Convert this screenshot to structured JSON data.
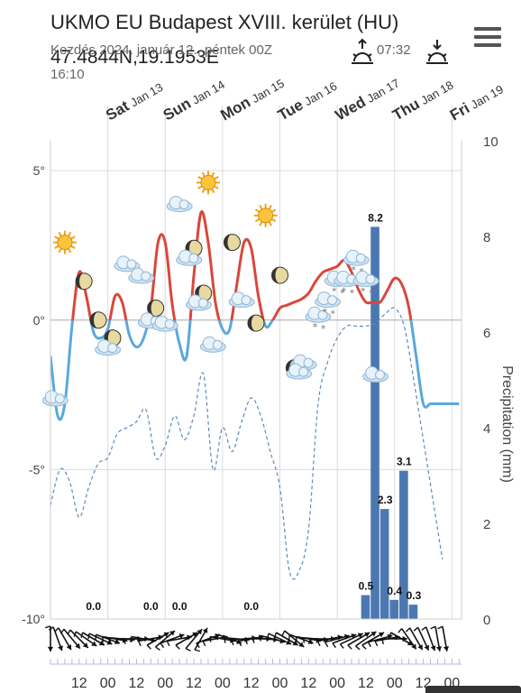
{
  "header": {
    "title": "UKMO EU Budapest XVIII. kerület (HU)",
    "coords": "47.4844N,19.1953E",
    "issued_line": "Kezdés 2024. január 12., péntek 00Z",
    "issued_time": "16:10",
    "sunrise": "07:32"
  },
  "icons": {
    "menu": "hamburger-menu-icon",
    "sunrise": "sunrise-icon",
    "sunset": "sunset-icon"
  },
  "colors": {
    "temp_warm": "#d9473b",
    "temp_cold": "#5aa8dc",
    "precip_bar": "#4b78b0",
    "dewpoint": "#5b8bbd",
    "grid": "#dcdcdc",
    "zero_line": "#aaaaaa",
    "axis_text": "#444444"
  },
  "chart_data": {
    "type": "line",
    "day_labels": [
      {
        "day": "Sat",
        "date": "Jan 13"
      },
      {
        "day": "Sun",
        "date": "Jan 14"
      },
      {
        "day": "Mon",
        "date": "Jan 15"
      },
      {
        "day": "Tue",
        "date": "Jan 16"
      },
      {
        "day": "Wed",
        "date": "Jan 17"
      },
      {
        "day": "Thu",
        "date": "Jan 18"
      },
      {
        "day": "Fri",
        "date": "Jan 19"
      }
    ],
    "x_tick_labels": [
      "12",
      "00",
      "12",
      "00",
      "12",
      "00",
      "12",
      "00",
      "12",
      "00",
      "12",
      "00",
      "12",
      "00"
    ],
    "x_hours": [
      12,
      24,
      36,
      48,
      60,
      72,
      84,
      96,
      108,
      120,
      132,
      144,
      156,
      168
    ],
    "y_left": {
      "ticks": [
        "5°",
        "0°",
        "-5°",
        "-10°"
      ],
      "values": [
        5,
        0,
        -5,
        -10
      ],
      "range": [
        -10,
        6
      ]
    },
    "y_right": {
      "label": "Precipitation (mm)",
      "ticks": [
        "0",
        "2",
        "4",
        "6",
        "8",
        "10"
      ],
      "values": [
        0,
        2,
        4,
        6,
        8,
        10
      ],
      "range": [
        0,
        10
      ]
    },
    "x_range": [
      0,
      172
    ],
    "temperature": {
      "x": [
        0,
        3,
        6,
        9,
        12,
        15,
        18,
        21,
        24,
        27,
        30,
        33,
        36,
        39,
        42,
        45,
        48,
        51,
        54,
        57,
        60,
        63,
        66,
        69,
        72,
        75,
        78,
        81,
        84,
        87,
        90,
        93,
        96,
        99,
        102,
        105,
        108,
        111,
        114,
        117,
        120,
        123,
        126,
        129,
        132,
        135,
        138,
        141,
        144,
        147,
        150,
        153,
        156,
        159,
        162,
        165,
        168,
        171
      ],
      "y": [
        -1.2,
        -3.2,
        -2.8,
        -0.2,
        1.6,
        0.8,
        -0.4,
        -0.6,
        -0.3,
        0.8,
        0.6,
        -0.5,
        -0.9,
        -0.6,
        0.4,
        2.6,
        2.6,
        0.5,
        -0.8,
        -1.2,
        1.5,
        3.6,
        2.6,
        0.6,
        -0.3,
        -0.3,
        1.2,
        2.6,
        2.4,
        0.8,
        -0.2,
        0.0,
        0.4,
        0.5,
        0.6,
        0.7,
        0.9,
        1.3,
        1.6,
        1.7,
        1.8,
        2.0,
        1.6,
        1.0,
        0.6,
        0.6,
        0.6,
        1.0,
        1.4,
        1.2,
        0.4,
        -1.2,
        -2.8,
        -2.8,
        -2.8,
        -2.8,
        -2.8,
        -2.8
      ],
      "note": ""
    },
    "dewpoint": {
      "x": [
        0,
        4,
        8,
        12,
        16,
        20,
        24,
        28,
        32,
        36,
        40,
        44,
        48,
        52,
        56,
        60,
        64,
        68,
        72,
        76,
        80,
        84,
        88,
        92,
        96,
        100,
        104,
        108,
        112,
        116,
        120,
        124,
        128,
        132,
        136,
        140,
        144,
        148,
        152,
        156,
        160,
        164
      ],
      "y": [
        -6.2,
        -5.0,
        -5.4,
        -6.6,
        -5.6,
        -4.8,
        -4.6,
        -3.8,
        -3.6,
        -3.4,
        -3.0,
        -4.6,
        -4.2,
        -3.2,
        -4.0,
        -3.2,
        -1.8,
        -5.0,
        -3.6,
        -4.4,
        -3.4,
        -2.6,
        -3.2,
        -4.4,
        -5.6,
        -8.4,
        -8.4,
        -7.0,
        -2.8,
        -1.4,
        -0.6,
        -0.2,
        -0.2,
        -0.2,
        -0.1,
        0.2,
        0.4,
        -0.2,
        -2.0,
        -4.0,
        -6.0,
        -8.0
      ]
    },
    "precipitation": {
      "bars": [
        {
          "x_start": 130,
          "x_end": 134,
          "value": 0.5,
          "label": "0.5"
        },
        {
          "x_start": 134,
          "x_end": 138,
          "value": 8.2,
          "label": "8.2"
        },
        {
          "x_start": 138,
          "x_end": 142,
          "value": 2.3,
          "label": "2.3"
        },
        {
          "x_start": 142,
          "x_end": 146,
          "value": 0.4,
          "label": "0.4"
        },
        {
          "x_start": 146,
          "x_end": 150,
          "value": 3.1,
          "label": "3.1"
        },
        {
          "x_start": 150,
          "x_end": 154,
          "value": 0.3,
          "label": "0.3"
        }
      ],
      "zero_labels": [
        {
          "x": 18,
          "label": "0.0"
        },
        {
          "x": 42,
          "label": "0.0"
        },
        {
          "x": 54,
          "label": "0.0"
        },
        {
          "x": 84,
          "label": "0.0"
        }
      ]
    },
    "weather_icons": [
      {
        "x": 6,
        "y": 2.6,
        "type": "sun"
      },
      {
        "x": 14,
        "y": 1.3,
        "type": "moon"
      },
      {
        "x": 2,
        "y": -2.6,
        "type": "cloud"
      },
      {
        "x": 20,
        "y": 0.0,
        "type": "moon"
      },
      {
        "x": 26,
        "y": -0.6,
        "type": "moon"
      },
      {
        "x": 24,
        "y": -0.9,
        "type": "cloud"
      },
      {
        "x": 32,
        "y": 1.9,
        "type": "cloud"
      },
      {
        "x": 38,
        "y": 1.5,
        "type": "cloud"
      },
      {
        "x": 44,
        "y": 0.4,
        "type": "moon"
      },
      {
        "x": 42,
        "y": 0.0,
        "type": "cloud"
      },
      {
        "x": 48,
        "y": -0.1,
        "type": "cloud"
      },
      {
        "x": 54,
        "y": 3.9,
        "type": "cloud"
      },
      {
        "x": 60,
        "y": 2.4,
        "type": "moon"
      },
      {
        "x": 58,
        "y": 2.1,
        "type": "cloud"
      },
      {
        "x": 66,
        "y": 4.6,
        "type": "sun"
      },
      {
        "x": 64,
        "y": 0.9,
        "type": "moon"
      },
      {
        "x": 62,
        "y": 0.6,
        "type": "cloud"
      },
      {
        "x": 68,
        "y": -0.8,
        "type": "cloud"
      },
      {
        "x": 76,
        "y": 2.6,
        "type": "moon"
      },
      {
        "x": 80,
        "y": 0.7,
        "type": "cloud"
      },
      {
        "x": 86,
        "y": -0.1,
        "type": "moon"
      },
      {
        "x": 90,
        "y": 3.5,
        "type": "sun"
      },
      {
        "x": 96,
        "y": 1.5,
        "type": "moon"
      },
      {
        "x": 102,
        "y": -1.6,
        "type": "moon"
      },
      {
        "x": 106,
        "y": -1.4,
        "type": "cloud"
      },
      {
        "x": 104,
        "y": -1.7,
        "type": "cloud"
      },
      {
        "x": 112,
        "y": 0.2,
        "type": "cloud-snow"
      },
      {
        "x": 116,
        "y": 0.7,
        "type": "cloud-snow"
      },
      {
        "x": 120,
        "y": 1.4,
        "type": "cloud-snow"
      },
      {
        "x": 124,
        "y": 1.4,
        "type": "cloud-snow"
      },
      {
        "x": 128,
        "y": 2.1,
        "type": "cloud-snow"
      },
      {
        "x": 132,
        "y": 1.4,
        "type": "cloud-snow"
      },
      {
        "x": 136,
        "y": -1.8,
        "type": "cloud"
      }
    ],
    "wind_arrows": {
      "x": [
        0,
        3,
        6,
        9,
        12,
        15,
        18,
        21,
        24,
        27,
        30,
        33,
        36,
        39,
        42,
        45,
        48,
        51,
        54,
        57,
        60,
        63,
        66,
        69,
        72,
        75,
        78,
        81,
        84,
        87,
        90,
        93,
        96,
        99,
        102,
        105,
        108,
        111,
        114,
        117,
        120,
        123,
        126,
        129,
        132,
        135,
        138,
        141,
        144,
        147,
        150,
        153,
        156,
        159,
        162,
        165
      ],
      "dir_deg": [
        180,
        160,
        150,
        140,
        135,
        125,
        120,
        115,
        110,
        100,
        95,
        90,
        90,
        100,
        80,
        60,
        50,
        70,
        80,
        60,
        40,
        30,
        70,
        80,
        100,
        110,
        95,
        85,
        80,
        90,
        95,
        105,
        115,
        120,
        130,
        110,
        100,
        95,
        90,
        80,
        75,
        70,
        65,
        60,
        55,
        60,
        75,
        80,
        90,
        120,
        145,
        150,
        155,
        160,
        170,
        170
      ]
    }
  }
}
